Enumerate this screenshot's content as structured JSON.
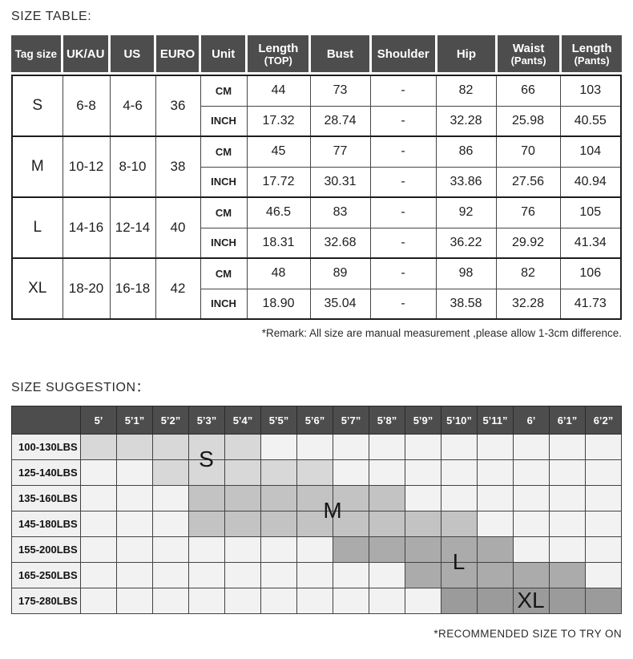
{
  "colors": {
    "header_bg": "#4d4d4d"
  },
  "size_table": {
    "title": "SIZE TABLE:",
    "headers": [
      {
        "lines": [
          "Tag size"
        ],
        "small": true
      },
      {
        "lines": [
          "UK/AU"
        ]
      },
      {
        "lines": [
          "US"
        ]
      },
      {
        "lines": [
          "EURO"
        ]
      },
      {
        "lines": [
          "Unit"
        ]
      },
      {
        "lines": [
          "Length",
          "(TOP)"
        ]
      },
      {
        "lines": [
          "Bust"
        ]
      },
      {
        "lines": [
          "Shoulder"
        ]
      },
      {
        "lines": [
          "Hip"
        ]
      },
      {
        "lines": [
          "Waist",
          "(Pants)"
        ]
      },
      {
        "lines": [
          "Length",
          "(Pants)"
        ]
      }
    ],
    "unit_labels": [
      "CM",
      "INCH"
    ],
    "groups": [
      {
        "tag": "S",
        "uk_au": "6-8",
        "us": "4-6",
        "euro": "36",
        "cm": [
          "44",
          "73",
          "-",
          "82",
          "66",
          "103"
        ],
        "inch": [
          "17.32",
          "28.74",
          "-",
          "32.28",
          "25.98",
          "40.55"
        ]
      },
      {
        "tag": "M",
        "uk_au": "10-12",
        "us": "8-10",
        "euro": "38",
        "cm": [
          "45",
          "77",
          "-",
          "86",
          "70",
          "104"
        ],
        "inch": [
          "17.72",
          "30.31",
          "-",
          "33.86",
          "27.56",
          "40.94"
        ]
      },
      {
        "tag": "L",
        "uk_au": "14-16",
        "us": "12-14",
        "euro": "40",
        "cm": [
          "46.5",
          "83",
          "-",
          "92",
          "76",
          "105"
        ],
        "inch": [
          "18.31",
          "32.68",
          "-",
          "36.22",
          "29.92",
          "41.34"
        ]
      },
      {
        "tag": "XL",
        "uk_au": "18-20",
        "us": "16-18",
        "euro": "42",
        "cm": [
          "48",
          "89",
          "-",
          "98",
          "82",
          "106"
        ],
        "inch": [
          "18.90",
          "35.04",
          "-",
          "38.58",
          "32.28",
          "41.73"
        ]
      }
    ],
    "remark": "*Remark: All size are manual measurement ,please allow 1-3cm difference."
  },
  "size_suggestion": {
    "title": "SIZE SUGGESTION：",
    "heights": [
      "5’",
      "5’1”",
      "5’2”",
      "5’3”",
      "5’4”",
      "5’5”",
      "5’6”",
      "5’7”",
      "5’8”",
      "5’9”",
      "5’10”",
      "5’11”",
      "6’",
      "6’1”",
      "6’2”"
    ],
    "weights": [
      "100-130LBS",
      "125-140LBS",
      "135-160LBS",
      "145-180LBS",
      "155-200LBS",
      "165-250LBS",
      "175-280LBS"
    ],
    "cell_colors": {
      "default_cell": "#f2f2f2",
      "S": "#d8d8d8",
      "M": "#c3c3c3",
      "L": "#ababab",
      "XL": "#9b9b9b"
    },
    "regions": [
      {
        "size": "S",
        "spans": [
          {
            "row": 1,
            "col_start": 1,
            "col_end": 5
          },
          {
            "row": 2,
            "col_start": 3,
            "col_end": 7
          }
        ],
        "label": {
          "x_col": 3.5,
          "y_row": 1.0
        }
      },
      {
        "size": "M",
        "spans": [
          {
            "row": 3,
            "col_start": 4,
            "col_end": 9
          },
          {
            "row": 4,
            "col_start": 4,
            "col_end": 11
          }
        ],
        "label": {
          "x_col": 7.0,
          "y_row": 3.0
        }
      },
      {
        "size": "L",
        "spans": [
          {
            "row": 5,
            "col_start": 8,
            "col_end": 12
          },
          {
            "row": 6,
            "col_start": 10,
            "col_end": 14
          }
        ],
        "label": {
          "x_col": 10.5,
          "y_row": 5.0
        }
      },
      {
        "size": "XL",
        "spans": [
          {
            "row": 7,
            "col_start": 11,
            "col_end": 15
          }
        ],
        "label": {
          "x_col": 12.5,
          "y_row": 6.5
        }
      }
    ],
    "footnote": "*RECOMMENDED SIZE TO TRY ON"
  }
}
